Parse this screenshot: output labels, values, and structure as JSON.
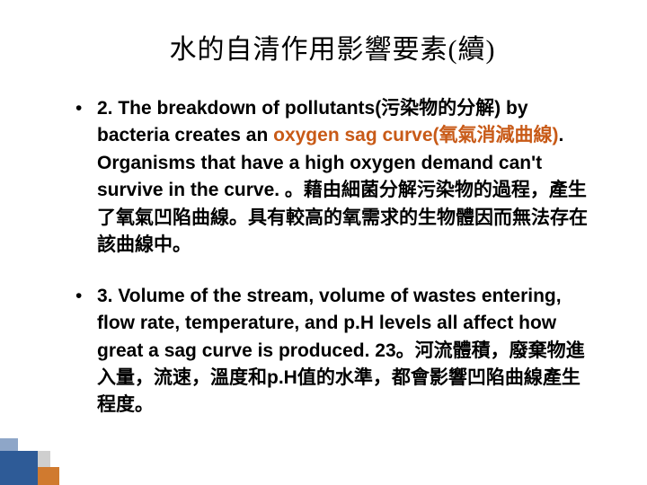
{
  "slide": {
    "title": "水的自清作用影響要素(續)",
    "title_fontsize": 30,
    "title_color": "#000000",
    "title_font": "DFKai-SB",
    "bullets": [
      {
        "marker": "•",
        "number": "2.",
        "pre": " The breakdown of pollutants(污染物的分解) by bacteria creates an ",
        "highlight": "oxygen sag curve(氧氣消減曲線)",
        "post": ". Organisms that have a high oxygen demand can't survive in the curve. 。藉由細菌分解污染物的過程，產生了氧氣凹陷曲線。具有較高的氧需求的生物體因而無法存在該曲線中。"
      },
      {
        "marker": "•",
        "number": "3.",
        "pre": " Volume of the stream, volume of wastes entering, flow rate, temperature, and p.H levels all affect how great a sag curve is produced. 23。河流體積，廢棄物進入量，流速，溫度和p.H值的水準，都會影響凹陷曲線產生程度。",
        "highlight": "",
        "post": ""
      }
    ],
    "bullet_fontsize": 21,
    "bullet_color": "#000000",
    "highlight_color": "#c85a17",
    "background_color": "#ffffff",
    "corner": {
      "r1": "#2e5b97",
      "r2": "#d07a2f",
      "r3": "#8ea6c8",
      "r4": "#cfcfcf"
    }
  }
}
